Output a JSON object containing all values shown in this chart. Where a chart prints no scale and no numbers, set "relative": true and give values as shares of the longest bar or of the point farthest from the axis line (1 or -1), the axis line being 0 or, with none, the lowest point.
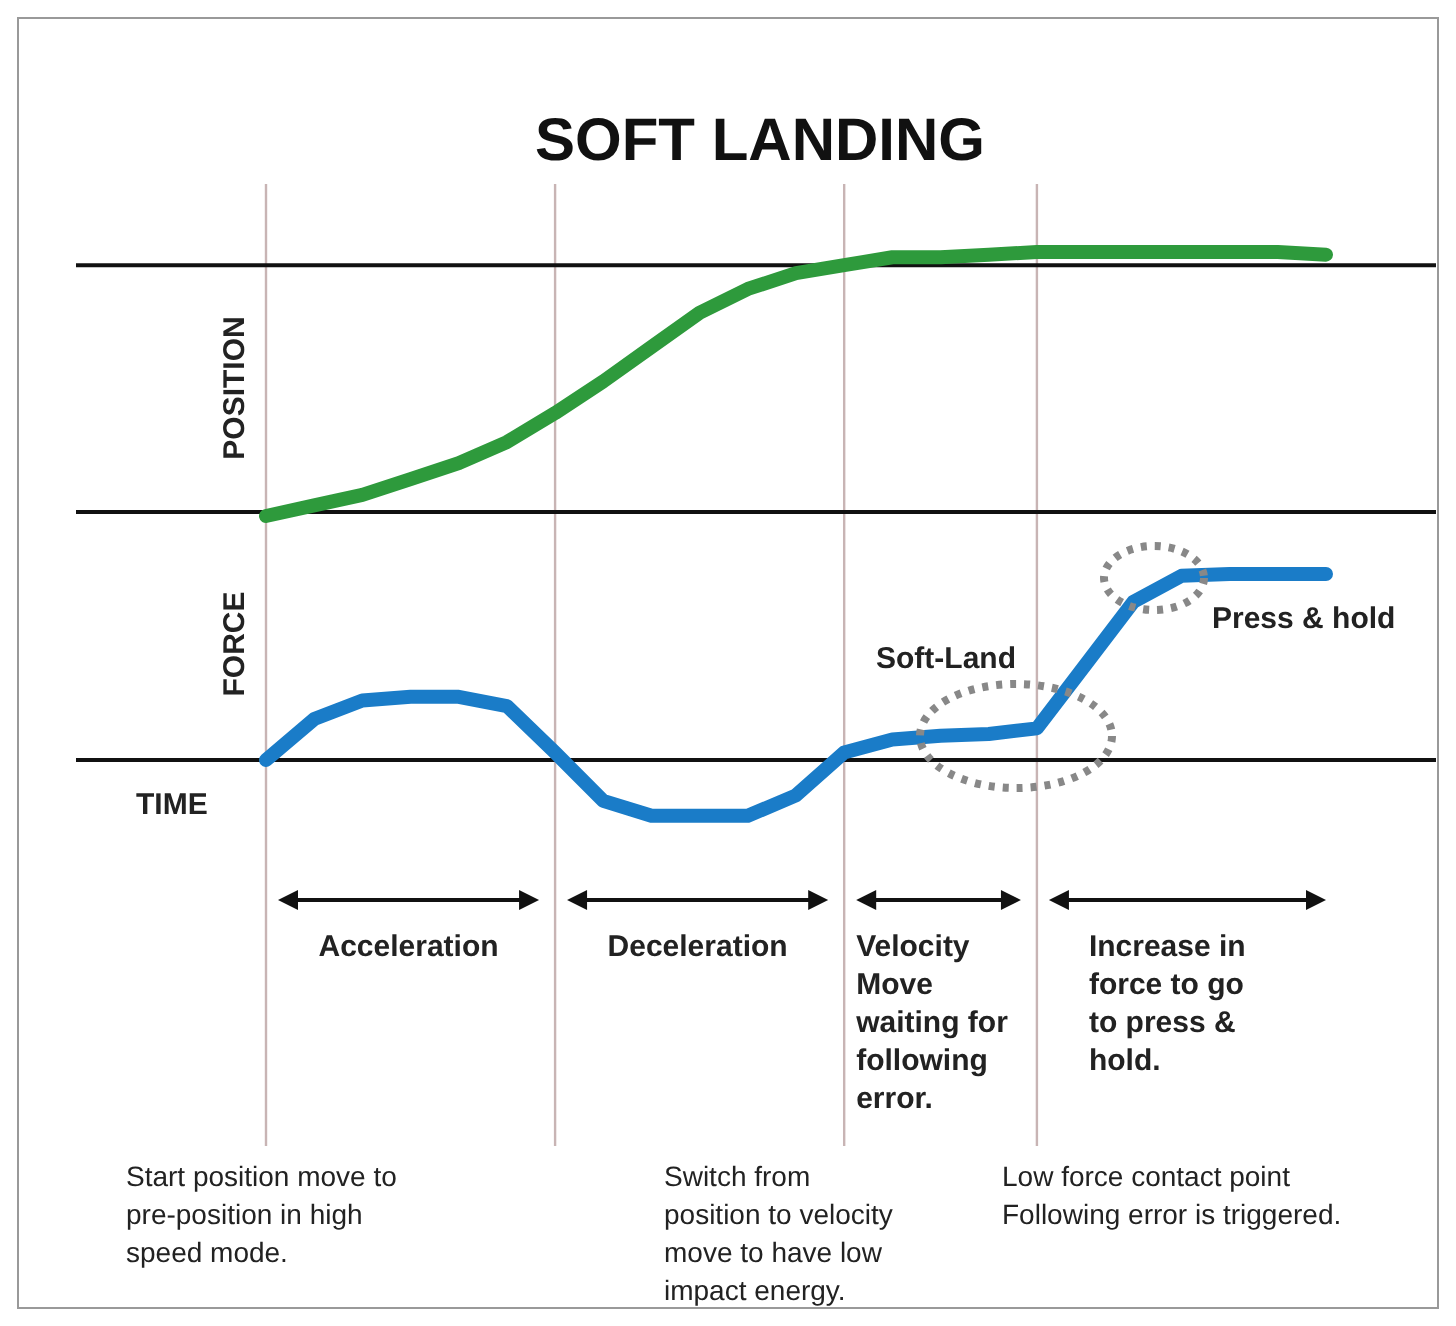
{
  "chart_data": [
    {
      "type": "line",
      "title": "SOFT LANDING",
      "ylabel": "POSITION",
      "relative": true,
      "grid": "x",
      "ref_lines": [
        {
          "axis": "y",
          "value": 0.95,
          "color": "#111111"
        }
      ],
      "categories": [
        null,
        null,
        null,
        null,
        null,
        null,
        null,
        null,
        null,
        null,
        null,
        null,
        null,
        null,
        null,
        null,
        null,
        null,
        null,
        null,
        null,
        null,
        null
      ],
      "series": [
        {
          "color": "#2e9a3c",
          "values": [
            0,
            0.04,
            0.08,
            0.14,
            0.2,
            0.28,
            0.39,
            0.51,
            0.64,
            0.77,
            0.86,
            0.92,
            0.95,
            0.98,
            0.98,
            0.99,
            1,
            1,
            1,
            1,
            1,
            1,
            0.99
          ]
        }
      ]
    },
    {
      "type": "line",
      "ylabel": "FORCE",
      "xlabel": "TIME",
      "relative": true,
      "grid": "x",
      "categories": [
        null,
        null,
        null,
        null,
        null,
        null,
        null,
        null,
        null,
        null,
        null,
        null,
        null,
        null,
        null,
        null,
        null,
        null,
        null,
        null,
        null,
        null,
        null
      ],
      "series": [
        {
          "color": "#1a7cc8",
          "values": [
            0,
            0.22,
            0.32,
            0.34,
            0.34,
            0.29,
            0.04,
            -0.22,
            -0.3,
            -0.3,
            -0.3,
            -0.19,
            0.04,
            0.11,
            0.13,
            0.14,
            0.17,
            0.51,
            0.85,
            0.99,
            1,
            1,
            1
          ]
        }
      ],
      "annotations": [
        "Soft-Land",
        "Press & hold",
        "Acceleration",
        "Deceleration",
        "Velocity\nMove\nwaiting for\nfollowing\nerror.",
        "Increase in\nforce to go\nto press &\nhold.",
        "Start position move to\npre-position in high\nspeed mode.",
        "Switch from\nposition to velocity\nmove to have low\nimpact energy.",
        "Low force contact point\nFollowing error is triggered."
      ]
    }
  ]
}
